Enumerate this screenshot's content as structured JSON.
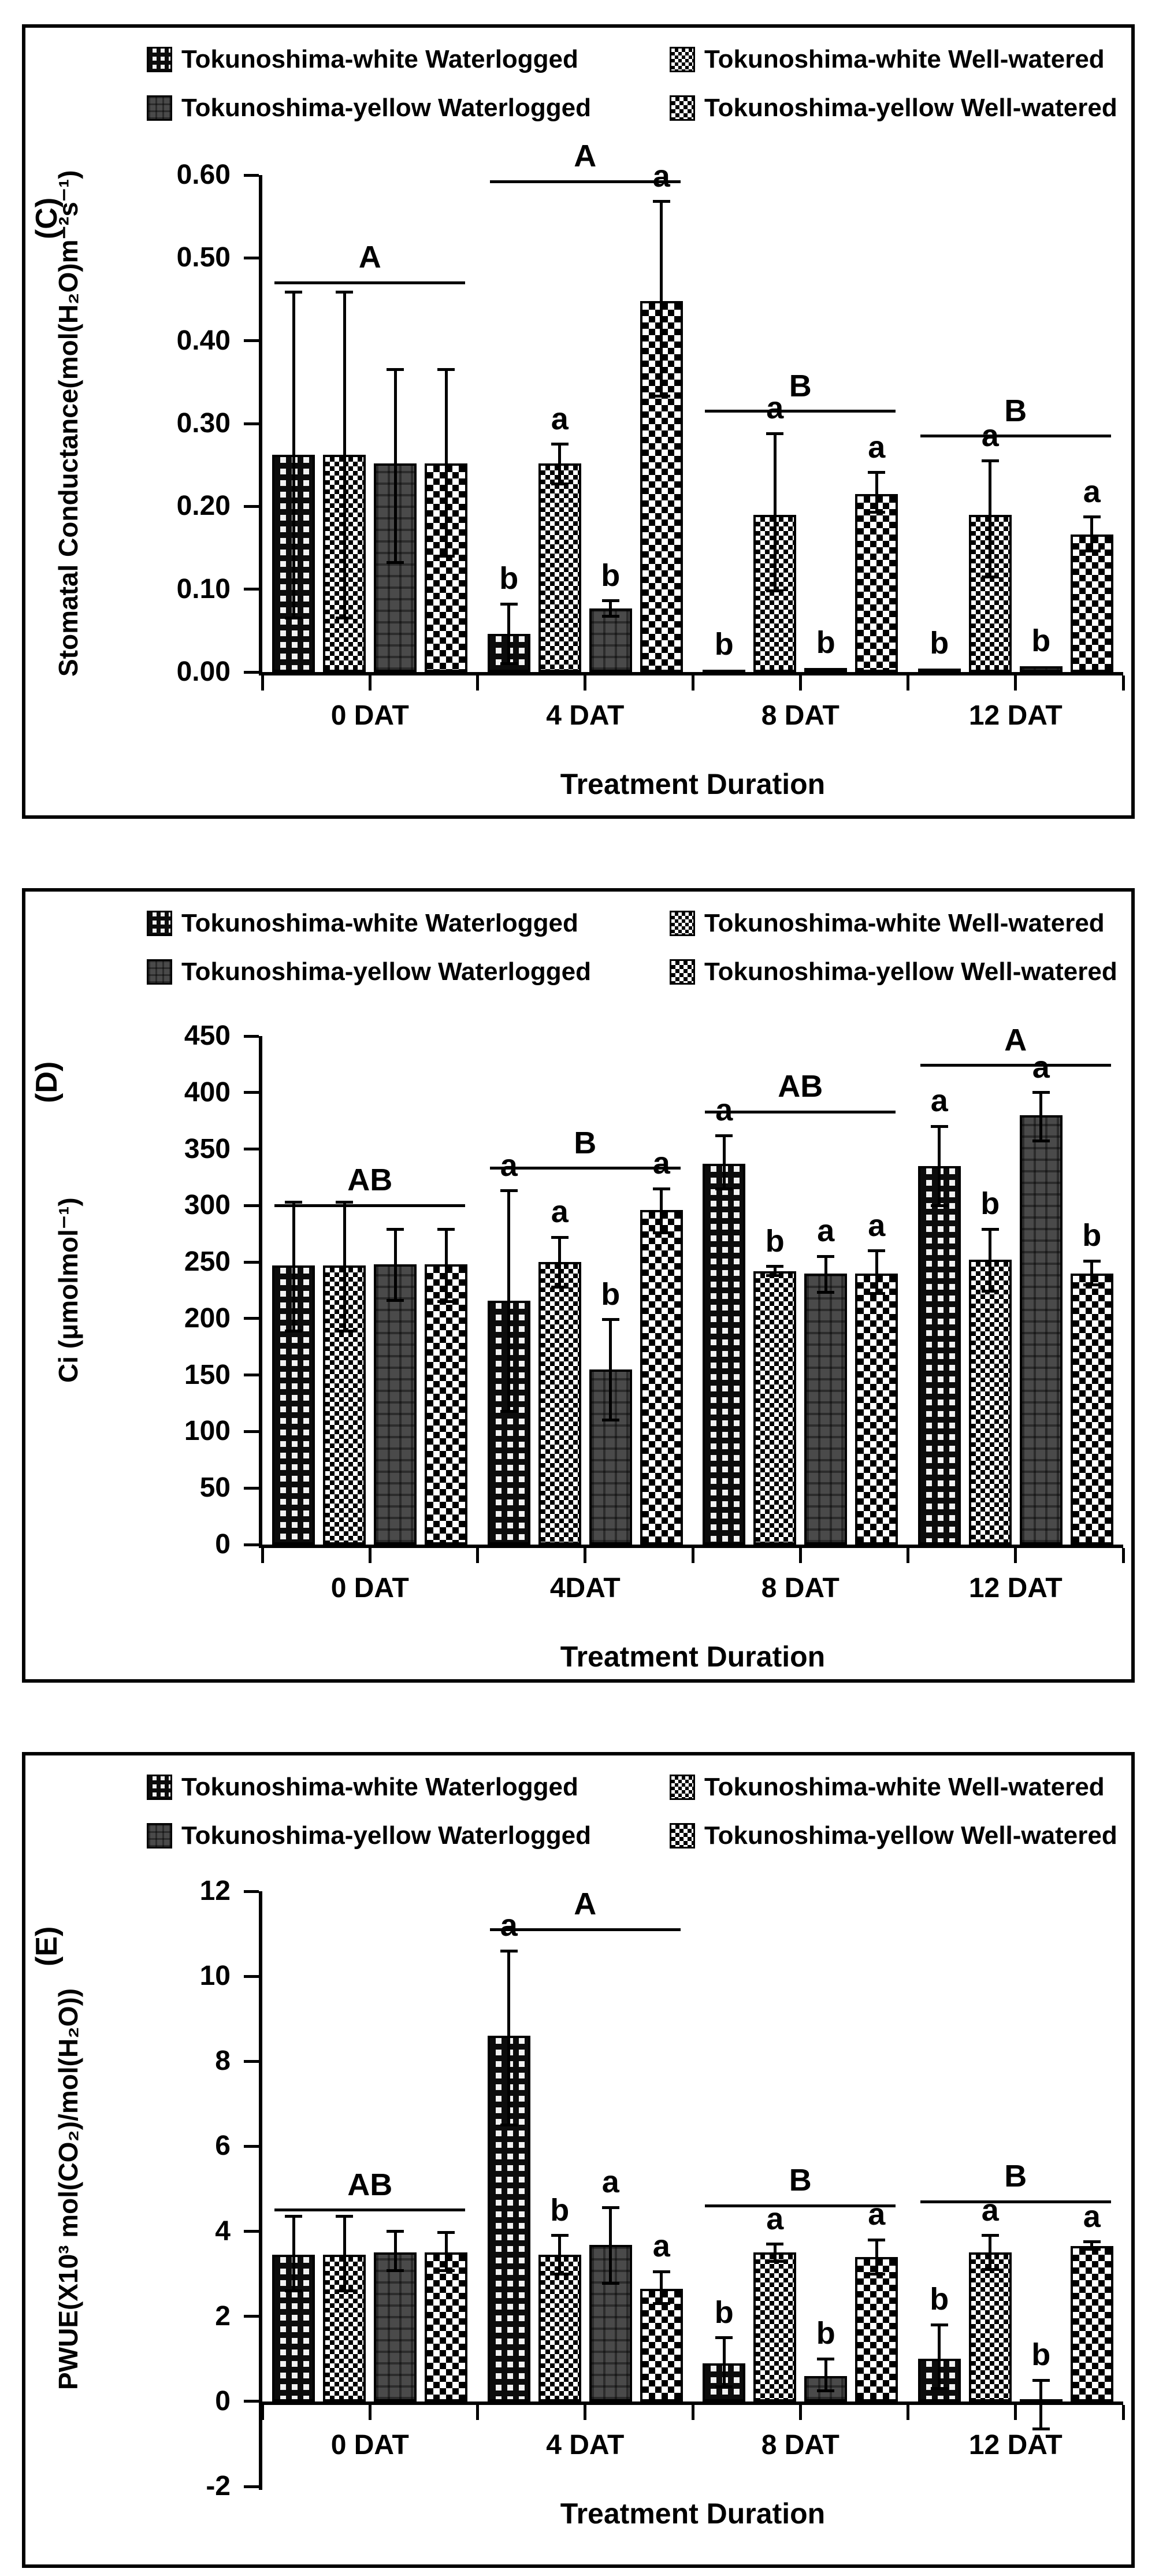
{
  "chart_data": [
    {
      "type": "bar",
      "panel_label": "(C)",
      "ylabel": "Stomatal Conductance(mol(H₂O)m⁻²s⁻¹)",
      "xlabel": "Treatment Duration",
      "ylim": [
        0,
        0.6
      ],
      "grid": false,
      "legend_position": "top",
      "categories": [
        "0 DAT",
        "4 DAT",
        "8 DAT",
        "12 DAT"
      ],
      "yticks": [
        {
          "v": 0.0,
          "label": "0.00"
        },
        {
          "v": 0.1,
          "label": "0.10"
        },
        {
          "v": 0.2,
          "label": "0.20"
        },
        {
          "v": 0.3,
          "label": "0.30"
        },
        {
          "v": 0.4,
          "label": "0.40"
        },
        {
          "v": 0.5,
          "label": "0.50"
        },
        {
          "v": 0.6,
          "label": "0.60"
        }
      ],
      "series": [
        {
          "name": "Tokunoshima-white Waterlogged",
          "pattern": "dark-dotted-check",
          "values": [
            0.262,
            0.046,
            0.003,
            0.004
          ],
          "err_up": [
            0.197,
            0.036,
            0,
            0
          ],
          "err_down": [
            0.197,
            0.036,
            0,
            0
          ],
          "letters": [
            "",
            "b",
            "b",
            "b"
          ]
        },
        {
          "name": "Tokunoshima-white Well-watered",
          "pattern": "fine-checkerboard",
          "values": [
            0.262,
            0.252,
            0.19,
            0.19
          ],
          "err_up": [
            0.197,
            0.023,
            0.098,
            0.065
          ],
          "err_down": [
            0.197,
            0.025,
            0.092,
            0.075
          ],
          "letters": [
            "",
            "a",
            "a",
            "a"
          ]
        },
        {
          "name": "Tokunoshima-yellow  Waterlogged",
          "pattern": "dark-gray-grid",
          "values": [
            0.252,
            0.077,
            0.005,
            0.007
          ],
          "err_up": [
            0.113,
            0.009,
            0,
            0
          ],
          "err_down": [
            0.12,
            0.01,
            0,
            0
          ],
          "letters": [
            "",
            "b",
            "b",
            "b"
          ]
        },
        {
          "name": "Tokunoshima-yellow  Well-watered",
          "pattern": "diamond-checkerboard",
          "values": [
            0.252,
            0.448,
            0.215,
            0.166
          ],
          "err_up": [
            0.113,
            0.12,
            0.026,
            0.021
          ],
          "err_down": [
            0.112,
            0.115,
            0.022,
            0.02
          ],
          "letters": [
            "",
            "a",
            "a",
            "a"
          ]
        }
      ],
      "group_sig": [
        {
          "label": "A",
          "y": 0.47
        },
        {
          "label": "A",
          "y": 0.592
        },
        {
          "label": "B",
          "y": 0.315
        },
        {
          "label": "B",
          "y": 0.285
        }
      ]
    },
    {
      "type": "bar",
      "panel_label": "(D)",
      "ylabel": "Ci (μmolmol⁻¹)",
      "xlabel": "Treatment Duration",
      "ylim": [
        0,
        450
      ],
      "grid": false,
      "legend_position": "top",
      "categories": [
        "0 DAT",
        "4DAT",
        "8 DAT",
        "12 DAT"
      ],
      "yticks": [
        {
          "v": 0,
          "label": "0"
        },
        {
          "v": 50,
          "label": "50"
        },
        {
          "v": 100,
          "label": "100"
        },
        {
          "v": 150,
          "label": "150"
        },
        {
          "v": 200,
          "label": "200"
        },
        {
          "v": 250,
          "label": "250"
        },
        {
          "v": 300,
          "label": "300"
        },
        {
          "v": 350,
          "label": "350"
        },
        {
          "v": 400,
          "label": "400"
        },
        {
          "v": 450,
          "label": "450"
        }
      ],
      "series": [
        {
          "name": "Tokunoshima-white Waterlogged",
          "pattern": "dark-dotted-check",
          "values": [
            247,
            216,
            337,
            335
          ],
          "err_up": [
            56,
            97,
            25,
            35
          ],
          "err_down": [
            58,
            98,
            22,
            35
          ],
          "letters": [
            "",
            "a",
            "a",
            "a"
          ]
        },
        {
          "name": "Tokunoshima-white Well-watered",
          "pattern": "fine-checkerboard",
          "values": [
            247,
            250,
            242,
            252
          ],
          "err_up": [
            56,
            22,
            4,
            27
          ],
          "err_down": [
            58,
            22,
            4,
            28
          ],
          "letters": [
            "",
            "a",
            "b",
            "b"
          ]
        },
        {
          "name": "Tokunoshima-yellow  Waterlogged",
          "pattern": "dark-gray-grid",
          "values": [
            248,
            155,
            240,
            380
          ],
          "err_up": [
            31,
            44,
            15,
            20
          ],
          "err_down": [
            32,
            45,
            17,
            23
          ],
          "letters": [
            "",
            "b",
            "a",
            "a"
          ]
        },
        {
          "name": "Tokunoshima-yellow  Well-watered",
          "pattern": "diamond-checkerboard",
          "values": [
            248,
            296,
            240,
            240
          ],
          "err_up": [
            31,
            19,
            20,
            11
          ],
          "err_down": [
            33,
            20,
            18,
            10
          ],
          "letters": [
            "",
            "a",
            "a",
            "b"
          ]
        }
      ],
      "group_sig": [
        {
          "label": "AB",
          "y": 300
        },
        {
          "label": "B",
          "y": 333
        },
        {
          "label": "AB",
          "y": 383
        },
        {
          "label": "A",
          "y": 424
        }
      ]
    },
    {
      "type": "bar",
      "panel_label": "(E)",
      "ylabel": "PWUE(X10³ mol(CO₂)/mol(H₂O))",
      "xlabel": "Treatment Duration",
      "ylim": [
        -2,
        12
      ],
      "grid": false,
      "legend_position": "top",
      "categories": [
        "0 DAT",
        "4 DAT",
        "8 DAT",
        "12 DAT"
      ],
      "yticks": [
        {
          "v": -2,
          "label": "-2"
        },
        {
          "v": 0,
          "label": "0"
        },
        {
          "v": 2,
          "label": "2"
        },
        {
          "v": 4,
          "label": "4"
        },
        {
          "v": 6,
          "label": "6"
        },
        {
          "v": 8,
          "label": "8"
        },
        {
          "v": 10,
          "label": "10"
        },
        {
          "v": 12,
          "label": "12"
        }
      ],
      "series": [
        {
          "name": "Tokunoshima-white Waterlogged",
          "pattern": "dark-dotted-check",
          "values": [
            3.45,
            8.6,
            0.9,
            1.0
          ],
          "err_up": [
            0.9,
            2.0,
            0.6,
            0.8
          ],
          "err_down": [
            0.85,
            2.1,
            0.55,
            0.7
          ],
          "letters": [
            "",
            "a",
            "b",
            "b"
          ]
        },
        {
          "name": "Tokunoshima-white Well-watered",
          "pattern": "fine-checkerboard",
          "values": [
            3.45,
            3.45,
            3.5,
            3.5
          ],
          "err_up": [
            0.9,
            0.45,
            0.2,
            0.4
          ],
          "err_down": [
            0.85,
            0.45,
            0.2,
            0.4
          ],
          "letters": [
            "",
            "b",
            "a",
            "a"
          ]
        },
        {
          "name": "Tokunoshima-yellow Waterlogged",
          "pattern": "dark-gray-grid",
          "values": [
            3.5,
            3.68,
            0.6,
            0.05
          ],
          "err_up": [
            0.5,
            0.88,
            0.4,
            0.45
          ],
          "err_down": [
            0.42,
            0.9,
            0.35,
            0.7
          ],
          "letters": [
            "",
            "a",
            "b",
            "b"
          ]
        },
        {
          "name": "Tokunoshima-yellow Well-watered",
          "pattern": "diamond-checkerboard",
          "values": [
            3.5,
            2.65,
            3.4,
            3.65
          ],
          "err_up": [
            0.48,
            0.4,
            0.4,
            0.1
          ],
          "err_down": [
            0.42,
            0.35,
            0.4,
            0.07
          ],
          "letters": [
            "",
            "a",
            "a",
            "a"
          ]
        }
      ],
      "group_sig": [
        {
          "label": "AB",
          "y": 4.5
        },
        {
          "label": "A",
          "y": 11.1
        },
        {
          "label": "B",
          "y": 4.6
        },
        {
          "label": "B",
          "y": 4.7
        }
      ]
    }
  ]
}
